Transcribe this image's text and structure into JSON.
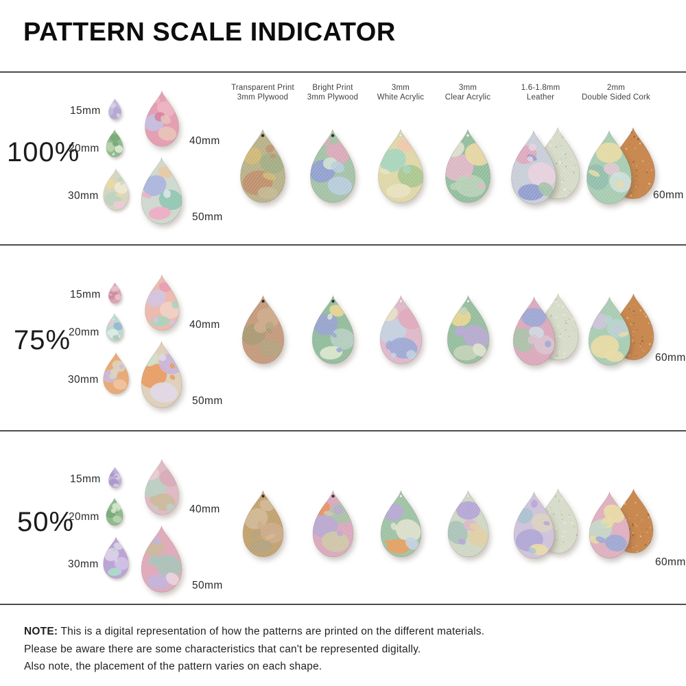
{
  "title": "PATTERN SCALE INDICATOR",
  "materials": [
    {
      "line1": "Transparent Print",
      "line2": "3mm Plywood"
    },
    {
      "line1": "Bright Print",
      "line2": "3mm Plywood"
    },
    {
      "line1": "3mm",
      "line2": "White Acrylic"
    },
    {
      "line1": "3mm",
      "line2": "Clear Acrylic"
    },
    {
      "line1": "1.6-1.8mm",
      "line2": "Leather"
    },
    {
      "line1": "2mm",
      "line2": "Double Sided Cork"
    }
  ],
  "sections": [
    {
      "scale": "100%",
      "size_labels": [
        "15mm",
        "20mm",
        "30mm",
        "40mm",
        "50mm"
      ],
      "right_size_label": "60mm",
      "left_drops": [
        {
          "colors": [
            "#c3b7dc",
            "#d8cfe8",
            "#b2a6cf"
          ]
        },
        {
          "colors": [
            "#8db98d",
            "#b7d4ae",
            "#dcead2",
            "#76a876"
          ]
        },
        {
          "colors": [
            "#d7d4c0",
            "#efe9d2",
            "#e9d9a0",
            "#eec9d7",
            "#bcd3c0"
          ]
        },
        {
          "colors": [
            "#e59cb1",
            "#eeb3c3",
            "#c3bfe2",
            "#e8c3b9",
            "#d77f9a"
          ]
        },
        {
          "colors": [
            "#cfd9cf",
            "#a9b4e0",
            "#8fc7b2",
            "#f0aac5",
            "#e9c9a2",
            "#dfe8ef"
          ]
        }
      ],
      "material_drops": [
        {
          "colors": [
            "#b9b28a",
            "#a3ae84",
            "#d3ba78",
            "#c5b893",
            "#c08f6d"
          ],
          "hole": "dark"
        },
        {
          "colors": [
            "#a5c3a8",
            "#e0a9bd",
            "#93a0d2",
            "#b9cfe0",
            "#cfe2d2"
          ],
          "hole": "dark"
        },
        {
          "colors": [
            "#dfd8a8",
            "#efc9ab",
            "#a5d6bf",
            "#a9c78f",
            "#e9e3c2"
          ],
          "hole": "light"
        },
        {
          "colors": [
            "#93bf9f",
            "#b9d3b9",
            "#dfe3cf",
            "#e3b9c9",
            "#ecd9a5"
          ],
          "hole": "light"
        },
        {
          "colors": [
            "#c9cfd9",
            "#e0a9bd",
            "#8f9cd0",
            "#a5c3a8",
            "#e9d3df"
          ],
          "hole": "none",
          "pair": "leather",
          "back_color": "#d7dcca"
        },
        {
          "colors": [
            "#a8cdb3",
            "#e9dca5",
            "#93bfae",
            "#cfe0d9",
            "#dfc9d3"
          ],
          "hole": "none",
          "pair": "cork",
          "back_color": "#c8874d"
        }
      ]
    },
    {
      "scale": "75%",
      "size_labels": [
        "15mm",
        "20mm",
        "30mm",
        "40mm",
        "50mm"
      ],
      "right_size_label": "60mm",
      "left_drops": [
        {
          "colors": [
            "#dca2b2",
            "#eabec9",
            "#c98aa0"
          ]
        },
        {
          "colors": [
            "#bcd8d0",
            "#a8c9b9",
            "#dceee5",
            "#93b9d0",
            "#e0c9d9"
          ]
        },
        {
          "colors": [
            "#e8a873",
            "#f0c39a",
            "#dcd3c0",
            "#c9b9d9"
          ]
        },
        {
          "colors": [
            "#ecb9ad",
            "#f2d0c3",
            "#a8d3b9",
            "#e89ab2",
            "#d3c3e0"
          ]
        },
        {
          "colors": [
            "#dfd0b9",
            "#e89a5e",
            "#c9b3d9",
            "#e0d9e8",
            "#d0e0c9"
          ]
        }
      ],
      "material_drops": [
        {
          "colors": [
            "#c59a7c",
            "#b3a37f",
            "#cdab8a",
            "#a89a72"
          ],
          "hole": "dark"
        },
        {
          "colors": [
            "#92bd9d",
            "#e9d793",
            "#9aa3d2",
            "#b9cfc3",
            "#dce8d0"
          ],
          "hole": "dark"
        },
        {
          "colors": [
            "#dfb9cb",
            "#9aa8d6",
            "#e9e2c6",
            "#c3d3e2",
            "#e0a9bd"
          ],
          "hole": "light"
        },
        {
          "colors": [
            "#96be9f",
            "#e9d793",
            "#c3d3b9",
            "#dfe3cf",
            "#b9a9d3"
          ],
          "hole": "light"
        },
        {
          "colors": [
            "#dca9bd",
            "#9aa8d6",
            "#a8c3a8",
            "#d9c3cf",
            "#cfd9e2"
          ],
          "hole": "none",
          "pair": "leather",
          "back_color": "#d7dcca"
        },
        {
          "colors": [
            "#a8cdb3",
            "#e9dca5",
            "#b9d3cf",
            "#cfc3dc"
          ],
          "hole": "none",
          "pair": "cork",
          "back_color": "#c8874d"
        }
      ]
    },
    {
      "scale": "50%",
      "size_labels": [
        "15mm",
        "20mm",
        "30mm",
        "40mm",
        "50mm"
      ],
      "right_size_label": "60mm",
      "left_drops": [
        {
          "colors": [
            "#bfaed9",
            "#d3c9e8",
            "#a896c9"
          ]
        },
        {
          "colors": [
            "#8db98d",
            "#b7d4ae",
            "#d3e8c9",
            "#76a876"
          ]
        },
        {
          "colors": [
            "#b9a2d6",
            "#cfc0e5",
            "#a8dcc9",
            "#dcd0e8"
          ]
        },
        {
          "colors": [
            "#dfb9c3",
            "#cbb89a",
            "#e8cdd6",
            "#b9d0c3",
            "#d9a9b9"
          ]
        },
        {
          "colors": [
            "#e0a9b9",
            "#cbb89a",
            "#c3b3dc",
            "#ecd3dc",
            "#a8c3b9"
          ]
        }
      ],
      "material_drops": [
        {
          "colors": [
            "#c2a26e",
            "#cdab8a",
            "#b3a37f",
            "#d3b995"
          ],
          "hole": "dark"
        },
        {
          "colors": [
            "#dba9bd",
            "#cfc9a8",
            "#e8945e",
            "#b9a9d3",
            "#a8c3a8"
          ],
          "hole": "dark"
        },
        {
          "colors": [
            "#9fc3a5",
            "#b8a8d8",
            "#e8a060",
            "#c3d3e2",
            "#dfe3cf"
          ],
          "hole": "light"
        },
        {
          "colors": [
            "#cfd8c5",
            "#b4a4d8",
            "#a8c3b9",
            "#e3cfa5",
            "#dcb9c9"
          ],
          "hole": "light"
        },
        {
          "colors": [
            "#cfc3dc",
            "#e9dca5",
            "#b0a6d6",
            "#dcd3c0",
            "#a8c3cf"
          ],
          "hole": "none",
          "pair": "leather",
          "back_color": "#d7dcca"
        },
        {
          "colors": [
            "#dfb0c0",
            "#9aa8d6",
            "#e9dca5",
            "#c3d9c9"
          ],
          "hole": "none",
          "pair": "cork",
          "back_color": "#c8874d"
        }
      ]
    }
  ],
  "note": {
    "heading": "NOTE:",
    "line1": "This is a digital representation of how the patterns are printed on the different materials.",
    "line2": "Please be aware there are some characteristics that can't be represented digitally.",
    "line3": "Also note, the placement of the pattern varies on each shape."
  },
  "colors": {
    "divider": "#4c4c4c",
    "text": "#222222",
    "header_text": "#3e3e3e",
    "leather_back": "#d7dcca",
    "cork_back": "#c8874d"
  }
}
